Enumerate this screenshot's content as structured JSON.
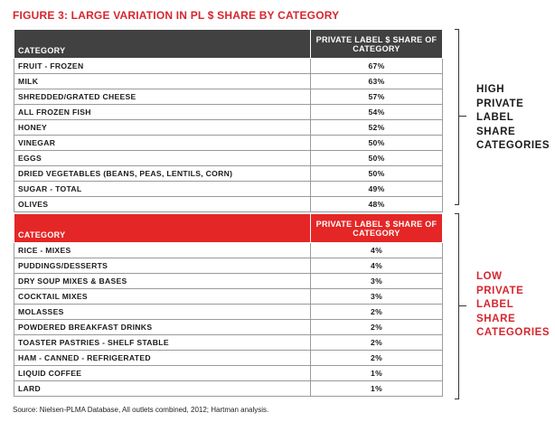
{
  "chart_data": {
    "type": "table",
    "title": "FIGURE 3: LARGE VARIATION IN PL $ SHARE BY CATEGORY",
    "columns": [
      "CATEGORY",
      "PRIVATE LABEL $ SHARE OF CATEGORY"
    ],
    "groups": [
      {
        "label_lines": [
          "HIGH",
          "PRIVATE",
          "LABEL",
          "SHARE",
          "CATEGORIES"
        ],
        "color": "#414141",
        "rows": [
          {
            "category": "FRUIT - FROZEN",
            "share": "67%"
          },
          {
            "category": "MILK",
            "share": "63%"
          },
          {
            "category": "SHREDDED/GRATED CHEESE",
            "share": "57%"
          },
          {
            "category": "ALL FROZEN FISH",
            "share": "54%"
          },
          {
            "category": "HONEY",
            "share": "52%"
          },
          {
            "category": "VINEGAR",
            "share": "50%"
          },
          {
            "category": "EGGS",
            "share": "50%"
          },
          {
            "category": "DRIED VEGETABLES (BEANS, PEAS, LENTILS, CORN)",
            "share": "50%"
          },
          {
            "category": "SUGAR - TOTAL",
            "share": "49%"
          },
          {
            "category": "OLIVES",
            "share": "48%"
          }
        ]
      },
      {
        "label_lines": [
          "LOW",
          "PRIVATE",
          "LABEL",
          "SHARE",
          "CATEGORIES"
        ],
        "color": "#e52626",
        "rows": [
          {
            "category": "RICE - MIXES",
            "share": "4%"
          },
          {
            "category": "PUDDINGS/DESSERTS",
            "share": "4%"
          },
          {
            "category": "DRY SOUP MIXES & BASES",
            "share": "3%"
          },
          {
            "category": "COCKTAIL MIXES",
            "share": "3%"
          },
          {
            "category": "MOLASSES",
            "share": "2%"
          },
          {
            "category": "POWDERED BREAKFAST DRINKS",
            "share": "2%"
          },
          {
            "category": "TOASTER PASTRIES - SHELF STABLE",
            "share": "2%"
          },
          {
            "category": "HAM - CANNED - REFRIGERATED",
            "share": "2%"
          },
          {
            "category": "LIQUID COFFEE",
            "share": "1%"
          },
          {
            "category": "LARD",
            "share": "1%"
          }
        ]
      }
    ],
    "source": "Source: Nielsen-PLMA Database, All outlets combined, 2012; Hartman analysis."
  }
}
